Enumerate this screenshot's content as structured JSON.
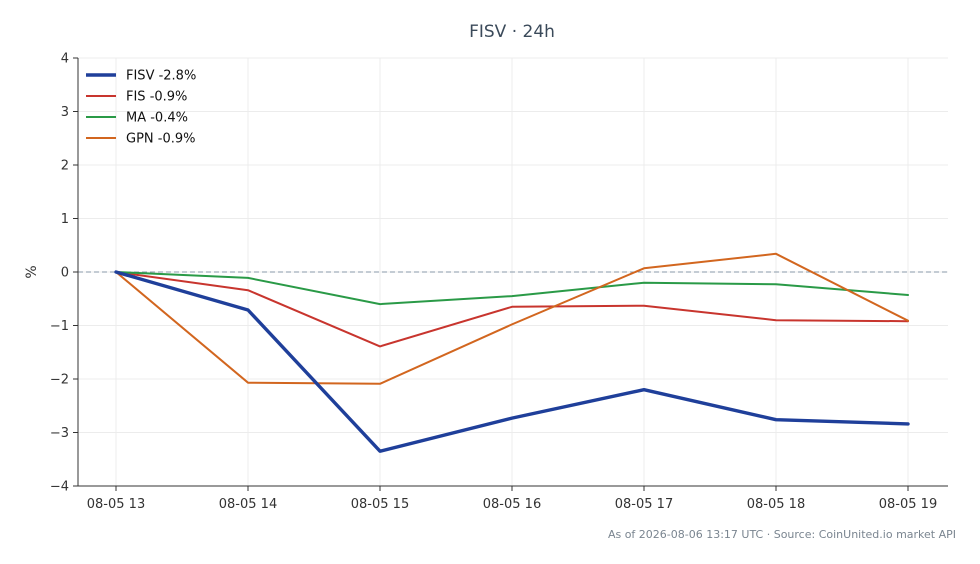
{
  "chart_data": {
    "type": "line",
    "title": "FISV · 24h",
    "xlabel": "",
    "ylabel": "%",
    "x": [
      "08-05 13",
      "08-05 14",
      "08-05 15",
      "08-05 16",
      "08-05 17",
      "08-05 18",
      "08-05 19"
    ],
    "ylim": [
      -4,
      4
    ],
    "yticks": [
      4,
      3,
      2,
      1,
      0,
      -1,
      -2,
      -3,
      -4
    ],
    "ytick_labels": [
      "4",
      "3",
      "2",
      "1",
      "0",
      "−1",
      "−2",
      "−3",
      "−4"
    ],
    "grid": true,
    "zero_line": true,
    "legend_position": "top-left",
    "series": [
      {
        "name": "FISV -2.8%",
        "color": "#1f3f9a",
        "values": [
          0.0,
          -0.71,
          -3.35,
          -2.73,
          -2.2,
          -2.76,
          -2.84
        ]
      },
      {
        "name": "FIS -0.9%",
        "color": "#c8352e",
        "values": [
          0.0,
          -0.34,
          -1.39,
          -0.65,
          -0.63,
          -0.9,
          -0.92
        ]
      },
      {
        "name": "MA -0.4%",
        "color": "#2a9a47",
        "values": [
          0.0,
          -0.11,
          -0.6,
          -0.45,
          -0.2,
          -0.23,
          -0.43
        ]
      },
      {
        "name": "GPN -0.9%",
        "color": "#d2661f",
        "values": [
          0.0,
          -2.07,
          -2.09,
          -0.98,
          0.07,
          0.34,
          -0.91
        ]
      }
    ]
  },
  "footer": "As of 2026-08-06 13:17 UTC · Source: CoinUnited.io market API"
}
